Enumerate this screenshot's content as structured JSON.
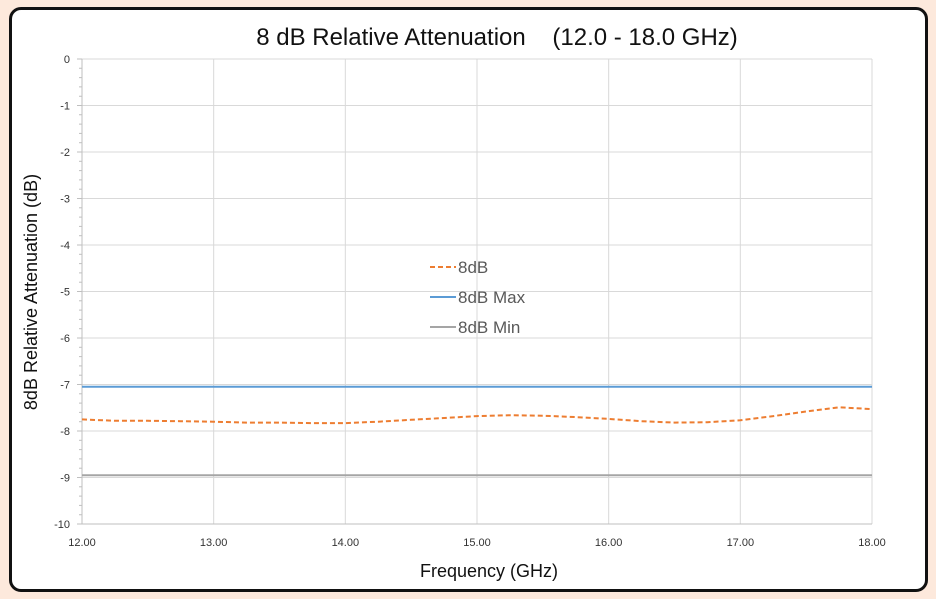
{
  "chart_data": {
    "type": "line",
    "title": "8 dB Relative Attenuation    (12.0 - 18.0 GHz)",
    "xlabel": "Frequency (GHz)",
    "ylabel": "8dB Relative Attenuation (dB)",
    "xlim": [
      12.0,
      18.0
    ],
    "ylim": [
      -10,
      0
    ],
    "x_ticks": [
      "12.00",
      "13.00",
      "14.00",
      "15.00",
      "16.00",
      "17.00",
      "18.00"
    ],
    "y_ticks": [
      "0",
      "-1",
      "-2",
      "-3",
      "-4",
      "-5",
      "-6",
      "-7",
      "-8",
      "-9",
      "-10"
    ],
    "grid": true,
    "legend_position": "center",
    "series": [
      {
        "name": "8dB",
        "color": "#ed7d31",
        "style": "dashed",
        "x": [
          12.0,
          12.25,
          12.5,
          12.75,
          13.0,
          13.25,
          13.5,
          13.75,
          14.0,
          14.25,
          14.5,
          14.75,
          15.0,
          15.25,
          15.5,
          15.75,
          16.0,
          16.25,
          16.5,
          16.75,
          17.0,
          17.25,
          17.5,
          17.75,
          18.0
        ],
        "y": [
          -7.75,
          -7.78,
          -7.78,
          -7.79,
          -7.8,
          -7.82,
          -7.82,
          -7.83,
          -7.83,
          -7.8,
          -7.76,
          -7.72,
          -7.68,
          -7.66,
          -7.67,
          -7.7,
          -7.74,
          -7.79,
          -7.82,
          -7.81,
          -7.77,
          -7.68,
          -7.58,
          -7.49,
          -7.53
        ]
      },
      {
        "name": "8dB Max",
        "color": "#5b9bd5",
        "style": "solid",
        "x": [
          12.0,
          18.0
        ],
        "y": [
          -7.05,
          -7.05
        ]
      },
      {
        "name": "8dB Min",
        "color": "#a5a5a5",
        "style": "solid",
        "x": [
          12.0,
          18.0
        ],
        "y": [
          -8.95,
          -8.95
        ]
      }
    ]
  }
}
